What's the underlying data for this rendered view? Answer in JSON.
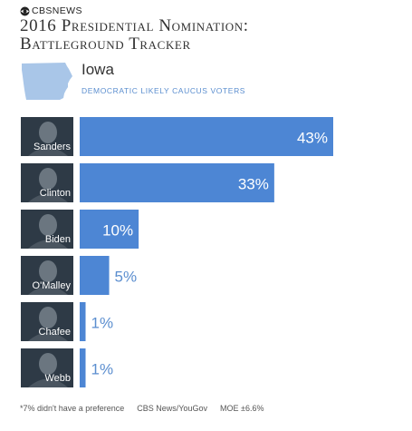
{
  "header": {
    "brand": "CBSNEWS",
    "title_line1": "2016 Presidential Nomination:",
    "title_line2": "Battleground Tracker"
  },
  "state": {
    "name": "Iowa",
    "subtitle": "DEMOCRATIC LIKELY CAUCUS VOTERS"
  },
  "chart_data": {
    "type": "bar",
    "orientation": "horizontal",
    "categories": [
      "Sanders",
      "Clinton",
      "Biden",
      "O'Malley",
      "Chafee",
      "Webb"
    ],
    "values": [
      43,
      33,
      10,
      5,
      1,
      1
    ],
    "value_labels": [
      "43%",
      "33%",
      "10%",
      "5%",
      "1%",
      "1%"
    ],
    "xlim": [
      0,
      43
    ],
    "bar_color": "#4d86d4",
    "grid": false
  },
  "footer": {
    "note": "*7% didn't have a preference",
    "source": "CBS News/YouGov",
    "moe": "MOE ±6.6%"
  },
  "colors": {
    "accent": "#4d86d4",
    "state_fill": "#a9c6e8",
    "label_outside": "#5b8ecf",
    "photo_bg": "#2e3a46"
  }
}
